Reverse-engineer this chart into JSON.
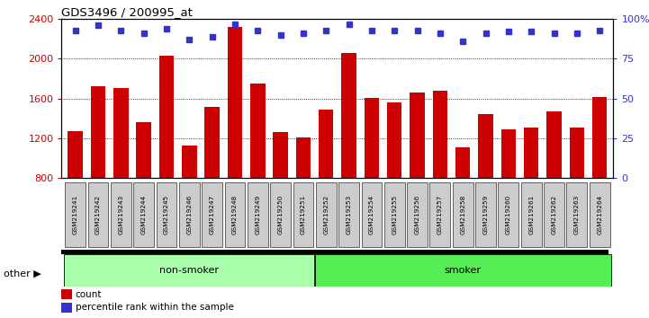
{
  "title": "GDS3496 / 200995_at",
  "categories": [
    "GSM219241",
    "GSM219242",
    "GSM219243",
    "GSM219244",
    "GSM219245",
    "GSM219246",
    "GSM219247",
    "GSM219248",
    "GSM219249",
    "GSM219250",
    "GSM219251",
    "GSM219252",
    "GSM219253",
    "GSM219254",
    "GSM219255",
    "GSM219256",
    "GSM219257",
    "GSM219258",
    "GSM219259",
    "GSM219260",
    "GSM219261",
    "GSM219262",
    "GSM219263",
    "GSM219264"
  ],
  "bar_values": [
    1270,
    1720,
    1710,
    1360,
    2030,
    1130,
    1520,
    2320,
    1750,
    1260,
    1210,
    1490,
    2060,
    1610,
    1560,
    1660,
    1680,
    1110,
    1440,
    1290,
    1310,
    1470,
    1310,
    1620
  ],
  "percentile_values": [
    93,
    96,
    93,
    91,
    94,
    87,
    89,
    97,
    93,
    90,
    91,
    93,
    97,
    93,
    93,
    93,
    91,
    86,
    91,
    92,
    92,
    91,
    91,
    93
  ],
  "bar_color": "#cc0000",
  "dot_color": "#3333cc",
  "ylim_left": [
    800,
    2400
  ],
  "ylim_right": [
    0,
    100
  ],
  "yticks_left": [
    800,
    1200,
    1600,
    2000,
    2400
  ],
  "yticks_right": [
    0,
    25,
    50,
    75,
    100
  ],
  "ylabel_right_labels": [
    "0",
    "25",
    "50",
    "75",
    "100%"
  ],
  "non_smoker_indices": [
    0,
    10
  ],
  "smoker_indices": [
    11,
    23
  ],
  "group_label_non_smoker": "non-smoker",
  "group_label_smoker": "smoker",
  "other_label": "other",
  "legend_count": "count",
  "legend_percentile": "percentile rank within the sample",
  "background_color": "#ffffff",
  "group_color_non_smoker": "#aaffaa",
  "group_color_smoker": "#55ee55",
  "tick_label_bg": "#cccccc",
  "grid_lines": [
    1200,
    1600,
    2000
  ]
}
